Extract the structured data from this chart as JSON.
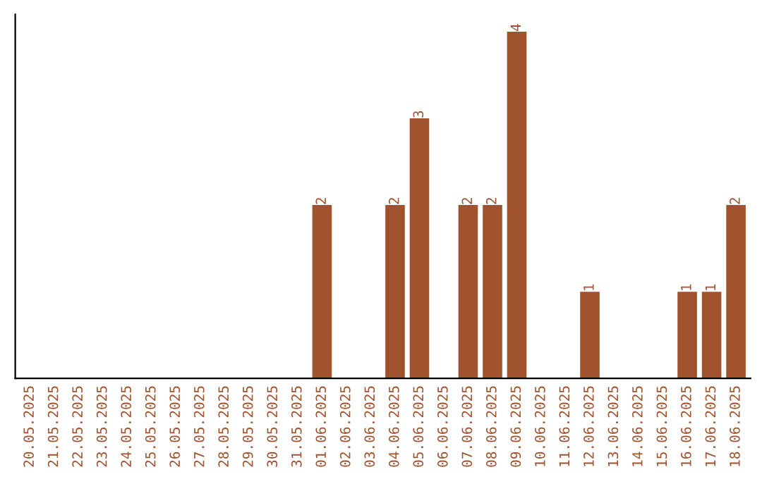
{
  "chart_data": {
    "type": "bar",
    "color": "#a0522d",
    "categories": [
      "20.05.2025",
      "21.05.2025",
      "22.05.2025",
      "23.05.2025",
      "24.05.2025",
      "25.05.2025",
      "26.05.2025",
      "27.05.2025",
      "28.05.2025",
      "29.05.2025",
      "30.05.2025",
      "31.05.2025",
      "01.06.2025",
      "02.06.2025",
      "03.06.2025",
      "04.06.2025",
      "05.06.2025",
      "06.06.2025",
      "07.06.2025",
      "08.06.2025",
      "09.06.2025",
      "10.06.2025",
      "11.06.2025",
      "12.06.2025",
      "13.06.2025",
      "14.06.2025",
      "15.06.2025",
      "16.06.2025",
      "17.06.2025",
      "18.06.2025"
    ],
    "values": [
      null,
      null,
      null,
      null,
      null,
      null,
      null,
      null,
      null,
      null,
      null,
      null,
      2,
      null,
      null,
      2,
      3,
      null,
      2,
      2,
      4,
      null,
      null,
      1,
      null,
      null,
      null,
      1,
      1,
      2
    ],
    "data_labels": true,
    "grid": false,
    "legend": false,
    "tick_labels": "x"
  }
}
